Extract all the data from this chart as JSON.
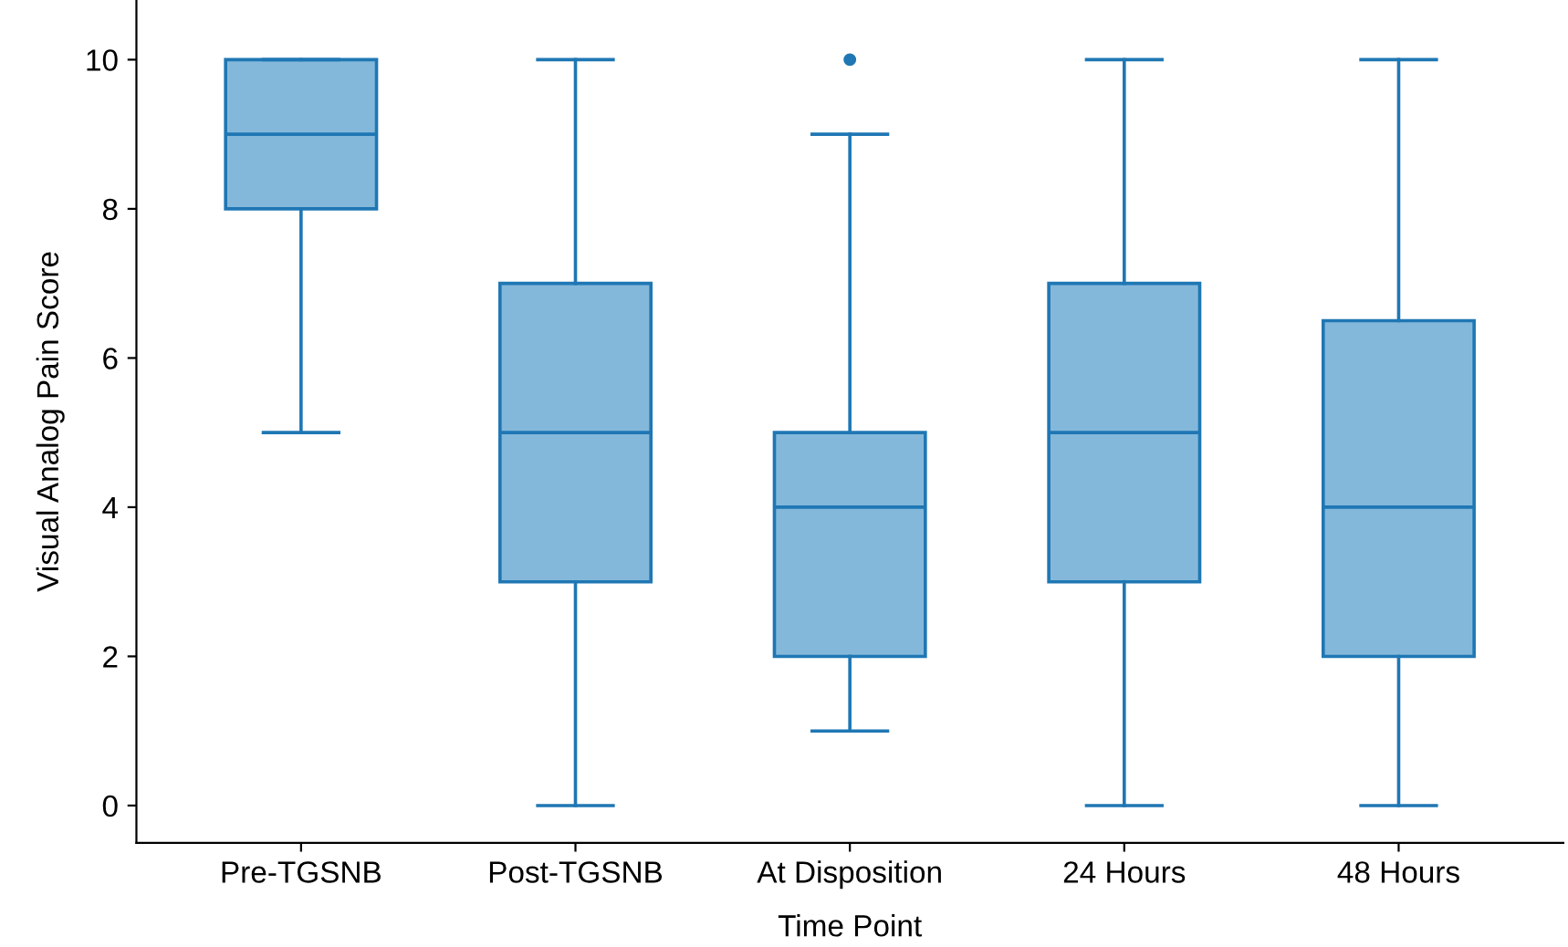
{
  "chart_data": {
    "type": "box",
    "xlabel": "Time Point",
    "ylabel": "Visual Analog Pain Score",
    "categories": [
      "Pre-TGSNB",
      "Post-TGSNB",
      "At Disposition",
      "24 Hours",
      "48 Hours"
    ],
    "series": [
      {
        "color": "#84b8da",
        "boxes": [
          {
            "low": 5,
            "q1": 8,
            "median": 9,
            "q3": 10,
            "high": 10
          },
          {
            "low": 0,
            "q1": 3,
            "median": 5,
            "q3": 7,
            "high": 10
          },
          {
            "low": 1,
            "q1": 2,
            "median": 4,
            "q3": 5,
            "high": 9,
            "outliers": [
              10
            ]
          },
          {
            "low": 0,
            "q1": 3,
            "median": 5,
            "q3": 7,
            "high": 10
          },
          {
            "low": 0,
            "q1": 2,
            "median": 4,
            "q3": 6.5,
            "high": 10
          }
        ]
      }
    ],
    "ylim": [
      -0.5,
      10.8
    ],
    "yticks": [
      0,
      2,
      4,
      6,
      8,
      10
    ],
    "grid": false
  }
}
